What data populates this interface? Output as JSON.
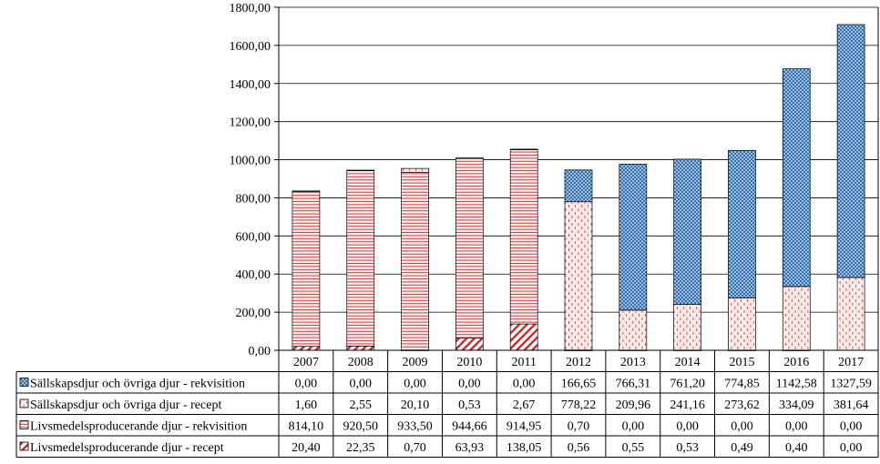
{
  "chart_data": {
    "type": "bar",
    "stacked": true,
    "categories": [
      "2007",
      "2008",
      "2009",
      "2010",
      "2011",
      "2012",
      "2013",
      "2014",
      "2015",
      "2016",
      "2017"
    ],
    "series": [
      {
        "key": "lr",
        "name": "Livsmedelsproducerande djur - recept",
        "values": [
          20.4,
          22.35,
          0.7,
          63.93,
          138.05,
          0.56,
          0.55,
          0.53,
          0.49,
          0.4,
          0.0
        ],
        "labels": [
          "20,40",
          "22,35",
          "0,70",
          "63,93",
          "138,05",
          "0,56",
          "0,55",
          "0,53",
          "0,49",
          "0,40",
          "0,00"
        ]
      },
      {
        "key": "lk",
        "name": "Livsmedelsproducerande djur - rekvisition",
        "values": [
          814.1,
          920.5,
          933.5,
          944.66,
          914.95,
          0.7,
          0.0,
          0.0,
          0.0,
          0.0,
          0.0
        ],
        "labels": [
          "814,10",
          "920,50",
          "933,50",
          "944,66",
          "914,95",
          "0,70",
          "0,00",
          "0,00",
          "0,00",
          "0,00",
          "0,00"
        ]
      },
      {
        "key": "sr",
        "name": "Sällskapsdjur och övriga djur - recept",
        "values": [
          1.6,
          2.55,
          20.1,
          0.53,
          2.67,
          778.22,
          209.96,
          241.16,
          273.62,
          334.09,
          381.64
        ],
        "labels": [
          "1,60",
          "2,55",
          "20,10",
          "0,53",
          "2,67",
          "778,22",
          "209,96",
          "241,16",
          "273,62",
          "334,09",
          "381,64"
        ]
      },
      {
        "key": "sk",
        "name": "Sällskapsdjur och övriga djur - rekvisition",
        "values": [
          0.0,
          0.0,
          0.0,
          0.0,
          0.0,
          166.65,
          766.31,
          761.2,
          774.85,
          1142.58,
          1327.59
        ],
        "labels": [
          "0,00",
          "0,00",
          "0,00",
          "0,00",
          "0,00",
          "166,65",
          "766,31",
          "761,20",
          "774,85",
          "1142,58",
          "1327,59"
        ]
      }
    ],
    "table_row_order": [
      "sk",
      "sr",
      "lk",
      "lr"
    ],
    "ylim": [
      0,
      1800
    ],
    "yticks": [
      0,
      200,
      400,
      600,
      800,
      1000,
      1200,
      1400,
      1600,
      1800
    ],
    "ytick_labels": [
      "0,00",
      "200,00",
      "400,00",
      "600,00",
      "800,00",
      "1000,00",
      "1200,00",
      "1400,00",
      "1600,00",
      "1800,00"
    ],
    "grid": true,
    "legend": "data-table-left",
    "colors": {
      "hatch": "#d23c3c",
      "blue": "#2f6fb0",
      "fill": "#ffe6e6",
      "axis": "#000000",
      "grid": "#000000"
    }
  }
}
